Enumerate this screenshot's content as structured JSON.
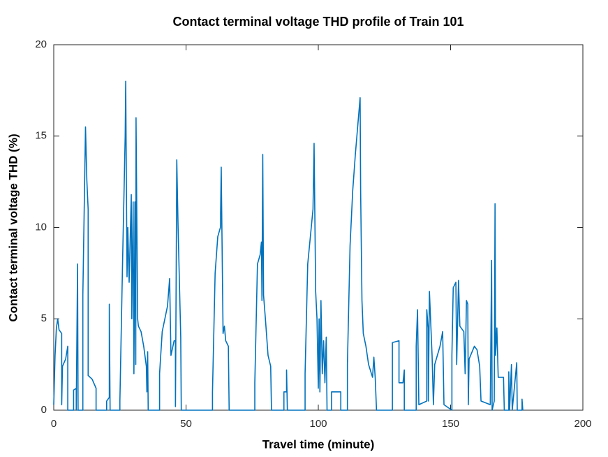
{
  "chart_data": {
    "type": "line",
    "title": "Contact terminal voltage THD profile of Train 101",
    "x_label": "Travel time (minute)",
    "y_label": "Contact terminal voltage THD (%)",
    "color": "#0072bd",
    "xlim": [
      0,
      200
    ],
    "xticks": [
      0,
      50,
      100,
      150,
      200
    ],
    "ylim": [
      0,
      20
    ],
    "yticks": [
      0,
      5,
      10,
      15,
      20
    ],
    "grid": false,
    "x": [
      0,
      0.5,
      1,
      1.5,
      2,
      3,
      3,
      3.3,
      4.5,
      5.3,
      5.3,
      7.5,
      7.5,
      8.5,
      8.5,
      9,
      9.2,
      11,
      11,
      12,
      12.5,
      13,
      13,
      14.5,
      16,
      16,
      20,
      20,
      21,
      21,
      21.3,
      25,
      25,
      26,
      27,
      27.2,
      27.7,
      28,
      28.5,
      29.3,
      29.5,
      30,
      30.3,
      30.7,
      31,
      31.1,
      31.7,
      32,
      33,
      34,
      35,
      35.2,
      35.5,
      35.7,
      40,
      40,
      41,
      42,
      43,
      43.8,
      44.3,
      45.5,
      46,
      46,
      46.3,
      46.5,
      47,
      48,
      48.2,
      60,
      60,
      61,
      62,
      63,
      63.3,
      64,
      64.5,
      65,
      66,
      66.3,
      76,
      76,
      77,
      78,
      78.5,
      78.7,
      79,
      79.3,
      80,
      81,
      82,
      82.3,
      87,
      87,
      88,
      88,
      88.3,
      95,
      95,
      96,
      97,
      98,
      98.4,
      99,
      99.5,
      100,
      100.3,
      100.6,
      101,
      101.5,
      102,
      102.5,
      103,
      103.3,
      105,
      105,
      108.5,
      108.5,
      111,
      111,
      112,
      113,
      114,
      115.8,
      116,
      116.5,
      117,
      118,
      119,
      120.5,
      121,
      121.5,
      122,
      128,
      128,
      130.5,
      130.5,
      132,
      132.5,
      132.5,
      137,
      137,
      137.5,
      138,
      141,
      141,
      141.5,
      141.6,
      142,
      143,
      143.5,
      144,
      146,
      147,
      147.5,
      150.5,
      150.5,
      151,
      152,
      152.3,
      153,
      153.5,
      155,
      155.5,
      156,
      156.5,
      156.7,
      157,
      159,
      160,
      161,
      161.5,
      165,
      165.5,
      165.7,
      166.5,
      166.8,
      167,
      167.5,
      168,
      170,
      170.3,
      172,
      172,
      172.3,
      173,
      173.3,
      175,
      175.2,
      177,
      177,
      177.3
    ],
    "values": [
      0.3,
      3,
      4.5,
      5,
      4.4,
      4.2,
      0.3,
      2.4,
      2.8,
      3.5,
      0,
      0,
      1.1,
      1.2,
      0,
      8,
      0,
      0,
      6.3,
      15.5,
      12.6,
      11,
      1.9,
      1.7,
      1.2,
      0,
      0,
      0.5,
      0.7,
      5.8,
      0,
      0,
      0.5,
      8,
      15,
      18,
      7.3,
      10,
      7,
      11.8,
      5,
      11.4,
      2,
      11.4,
      2.5,
      16,
      5,
      4.6,
      4.3,
      3.5,
      2.4,
      1,
      3.2,
      0,
      0,
      2,
      4.3,
      5,
      5.7,
      7.2,
      3,
      3.8,
      3.8,
      0.2,
      8,
      13.7,
      10,
      4,
      0,
      0,
      1,
      7.5,
      9.5,
      10,
      13.3,
      4.2,
      4.6,
      3.8,
      3.5,
      0,
      0,
      1.5,
      8,
      8.5,
      9.2,
      6,
      14,
      6.3,
      5,
      3,
      2.4,
      0,
      0,
      1,
      1,
      2.2,
      0,
      0,
      2,
      8,
      9.5,
      11,
      14.6,
      6.5,
      5,
      1.2,
      5,
      1,
      6,
      2,
      3.8,
      1.5,
      4,
      0,
      0,
      1,
      1,
      0,
      0,
      2.5,
      9,
      12,
      14,
      17.1,
      12,
      6,
      4.2,
      3.5,
      2.5,
      1.8,
      2.9,
      1.8,
      0,
      0,
      3.7,
      3.8,
      1.5,
      1.5,
      2.2,
      0,
      0,
      3.5,
      5.5,
      0.3,
      0.5,
      5.5,
      4.5,
      0.5,
      6.5,
      3,
      0.3,
      2.5,
      3.5,
      4.3,
      0.3,
      0,
      3,
      6.7,
      7,
      2.5,
      7.1,
      4.6,
      4.3,
      2,
      6,
      5.8,
      0.3,
      2.8,
      3.5,
      3.3,
      2.4,
      0.5,
      0.3,
      8.2,
      0,
      0.5,
      11.3,
      3,
      4.5,
      1.8,
      1.8,
      0,
      0,
      2.1,
      0,
      2.5,
      0,
      2.6,
      0,
      0,
      0.6,
      0
    ]
  }
}
